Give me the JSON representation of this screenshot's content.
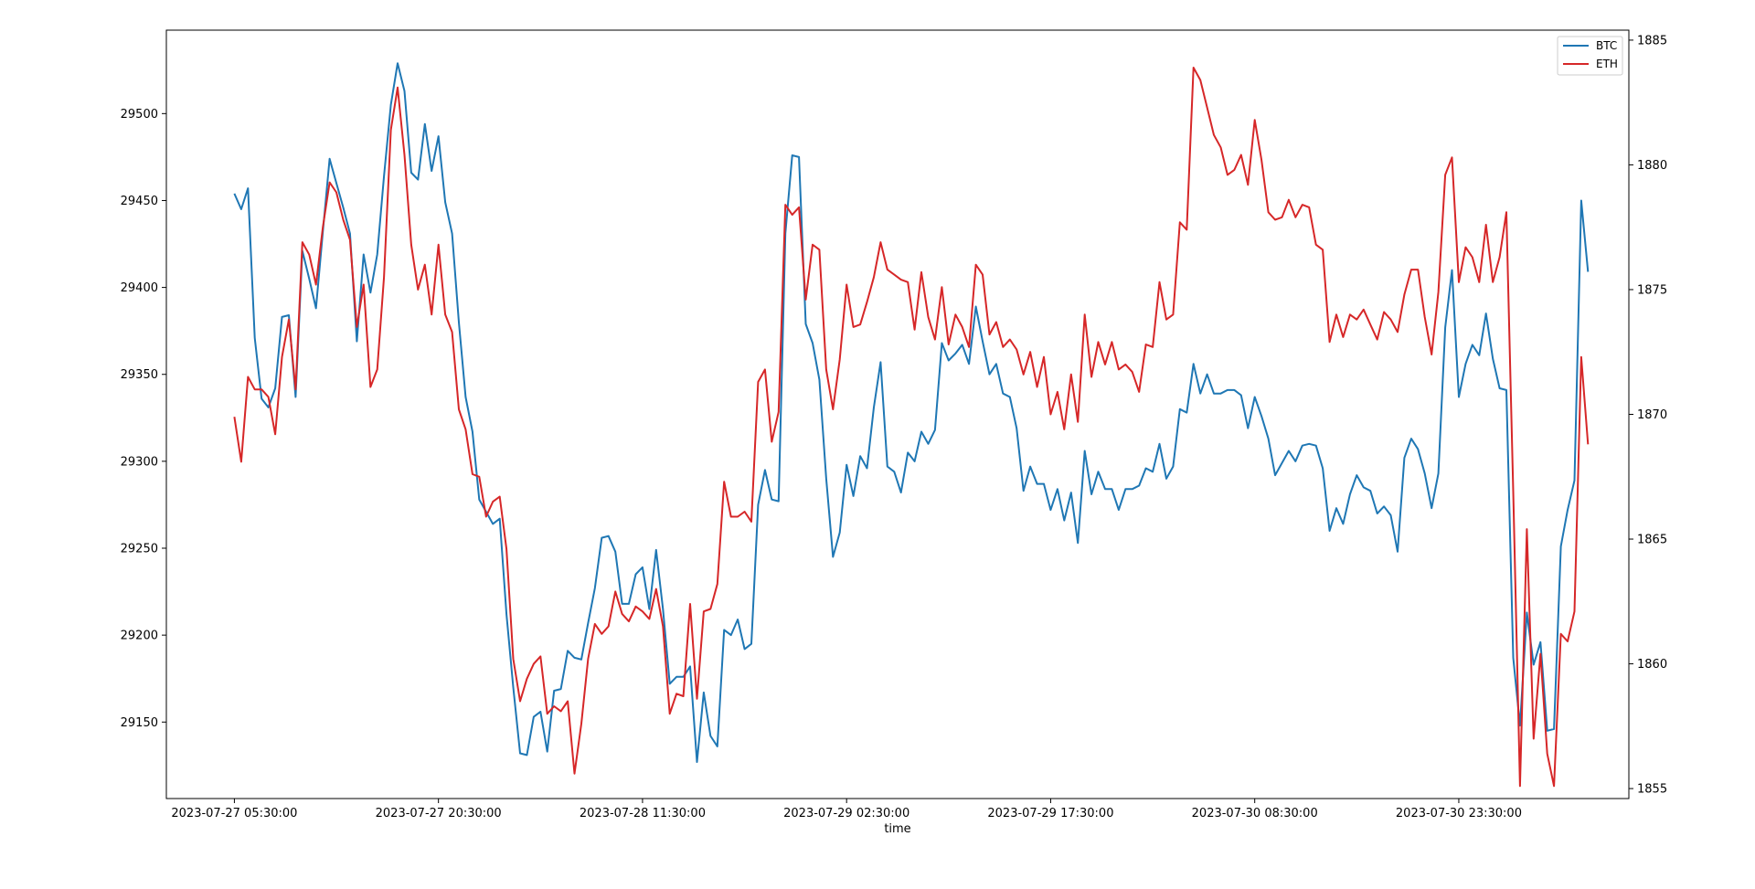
{
  "chart_data": {
    "type": "line",
    "title": "",
    "xlabel": "time",
    "ylabel_left": "",
    "ylabel_right": "",
    "x_start": "2023-07-27 05:30:00",
    "x_step_minutes": 30,
    "x_ticks": [
      "2023-07-27 05:30:00",
      "2023-07-27 20:30:00",
      "2023-07-28 11:30:00",
      "2023-07-29 02:30:00",
      "2023-07-29 17:30:00",
      "2023-07-30 08:30:00",
      "2023-07-30 23:30:00"
    ],
    "x_tick_index": [
      0,
      30,
      60,
      90,
      120,
      150,
      180
    ],
    "xlim_index": [
      -10,
      205
    ],
    "left_axis": {
      "ylim": [
        29106,
        29548
      ],
      "ticks": [
        29150,
        29200,
        29250,
        29300,
        29350,
        29400,
        29450,
        29500
      ]
    },
    "right_axis": {
      "ylim": [
        1854.6,
        1885.4
      ],
      "ticks": [
        1855,
        1860,
        1865,
        1870,
        1875,
        1880,
        1885
      ]
    },
    "grid": false,
    "legend_position": "top-right",
    "series": [
      {
        "name": "BTC",
        "axis": "left",
        "color": "#1f77b4",
        "values": [
          29454,
          29445,
          29457,
          29371,
          29336,
          29331,
          29342,
          29383,
          29384,
          29337,
          29421,
          29405,
          29388,
          29432,
          29474,
          29460,
          29446,
          29431,
          29369,
          29419,
          29397,
          29419,
          29464,
          29505,
          29529,
          29513,
          29466,
          29462,
          29494,
          29467,
          29487,
          29449,
          29431,
          29380,
          29337,
          29317,
          29278,
          29271,
          29264,
          29267,
          29212,
          29170,
          29132,
          29131,
          29153,
          29156,
          29133,
          29168,
          29169,
          29191,
          29187,
          29186,
          29207,
          29227,
          29256,
          29257,
          29248,
          29218,
          29218,
          29235,
          29239,
          29215,
          29249,
          29215,
          29172,
          29176,
          29176,
          29182,
          29127,
          29167,
          29142,
          29136,
          29203,
          29200,
          29209,
          29192,
          29195,
          29275,
          29295,
          29278,
          29277,
          29431,
          29476,
          29475,
          29379,
          29368,
          29347,
          29290,
          29245,
          29259,
          29298,
          29280,
          29303,
          29296,
          29331,
          29357,
          29297,
          29294,
          29282,
          29305,
          29300,
          29317,
          29310,
          29318,
          29368,
          29358,
          29362,
          29367,
          29356,
          29389,
          29369,
          29350,
          29356,
          29339,
          29337,
          29319,
          29283,
          29297,
          29287,
          29287,
          29272,
          29284,
          29266,
          29282,
          29253,
          29306,
          29281,
          29294,
          29284,
          29284,
          29272,
          29284,
          29284,
          29286,
          29296,
          29294,
          29310,
          29290,
          29297,
          29330,
          29328,
          29356,
          29339,
          29350,
          29339,
          29339,
          29341,
          29341,
          29338,
          29319,
          29337,
          29326,
          29313,
          29292,
          29299,
          29306,
          29300,
          29309,
          29310,
          29309,
          29296,
          29260,
          29273,
          29264,
          29281,
          29292,
          29285,
          29283,
          29270,
          29274,
          29269,
          29248,
          29302,
          29313,
          29307,
          29293,
          29273,
          29293,
          29377,
          29410,
          29337,
          29356,
          29367,
          29361,
          29385,
          29359,
          29342,
          29341,
          29187,
          29148,
          29213,
          29183,
          29196,
          29145,
          29146,
          29251,
          29272,
          29289,
          29450,
          29409
        ]
      },
      {
        "name": "ETH",
        "axis": "right",
        "color": "#d62728",
        "values": [
          1869.9,
          1868.1,
          1871.5,
          1871.0,
          1871.0,
          1870.7,
          1869.2,
          1872.3,
          1873.8,
          1871.0,
          1876.9,
          1876.4,
          1875.2,
          1877.5,
          1879.3,
          1878.9,
          1877.8,
          1877.0,
          1873.5,
          1875.2,
          1871.1,
          1871.8,
          1875.5,
          1881.4,
          1883.1,
          1880.4,
          1876.8,
          1875.0,
          1876.0,
          1874.0,
          1876.8,
          1874.0,
          1873.3,
          1870.2,
          1869.4,
          1867.6,
          1867.5,
          1865.9,
          1866.5,
          1866.7,
          1864.6,
          1860.2,
          1858.5,
          1859.4,
          1860.0,
          1860.3,
          1858.0,
          1858.3,
          1858.1,
          1858.5,
          1855.6,
          1857.6,
          1860.2,
          1861.6,
          1861.2,
          1861.5,
          1862.9,
          1862.0,
          1861.7,
          1862.3,
          1862.1,
          1861.8,
          1863.0,
          1861.5,
          1858.0,
          1858.8,
          1858.7,
          1862.4,
          1858.6,
          1862.1,
          1862.2,
          1863.2,
          1867.3,
          1865.9,
          1865.9,
          1866.1,
          1865.7,
          1871.3,
          1871.8,
          1868.9,
          1870.1,
          1878.4,
          1878.0,
          1878.3,
          1874.6,
          1876.8,
          1876.6,
          1871.8,
          1870.2,
          1872.2,
          1875.2,
          1873.5,
          1873.6,
          1874.5,
          1875.5,
          1876.9,
          1875.8,
          1875.6,
          1875.4,
          1875.3,
          1873.4,
          1875.7,
          1873.9,
          1873.0,
          1875.1,
          1872.8,
          1874.0,
          1873.5,
          1872.7,
          1876.0,
          1875.6,
          1873.2,
          1873.7,
          1872.7,
          1873.0,
          1872.6,
          1871.6,
          1872.5,
          1871.1,
          1872.3,
          1870.0,
          1870.9,
          1869.4,
          1871.6,
          1869.7,
          1874.0,
          1871.5,
          1872.9,
          1872.0,
          1872.9,
          1871.8,
          1872.0,
          1871.7,
          1870.9,
          1872.8,
          1872.7,
          1875.3,
          1873.8,
          1874.0,
          1877.7,
          1877.4,
          1883.9,
          1883.4,
          1882.3,
          1881.2,
          1880.7,
          1879.6,
          1879.8,
          1880.4,
          1879.2,
          1881.8,
          1880.2,
          1878.1,
          1877.8,
          1877.9,
          1878.6,
          1877.9,
          1878.4,
          1878.3,
          1876.8,
          1876.6,
          1872.9,
          1874.0,
          1873.1,
          1874.0,
          1873.8,
          1874.2,
          1873.6,
          1873.0,
          1874.1,
          1873.8,
          1873.3,
          1874.8,
          1875.8,
          1875.8,
          1873.9,
          1872.4,
          1874.9,
          1879.6,
          1880.3,
          1875.3,
          1876.7,
          1876.3,
          1875.3,
          1877.6,
          1875.3,
          1876.3,
          1878.1,
          1866.9,
          1855.1,
          1865.4,
          1857.0,
          1860.4,
          1856.4,
          1855.1,
          1861.2,
          1860.9,
          1862.1,
          1872.3,
          1868.8
        ]
      }
    ]
  }
}
